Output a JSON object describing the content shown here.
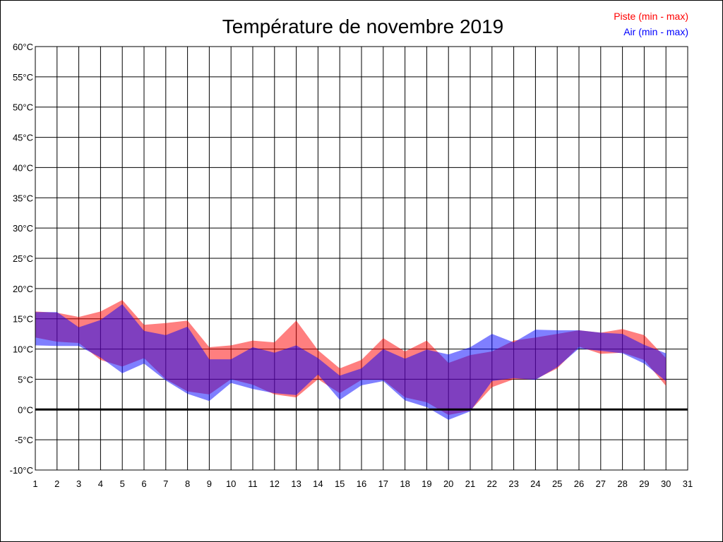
{
  "chart_data": {
    "type": "area",
    "title": "Température de novembre 2019",
    "x": [
      1,
      2,
      3,
      4,
      5,
      6,
      7,
      8,
      9,
      10,
      11,
      12,
      13,
      14,
      15,
      16,
      17,
      18,
      19,
      20,
      21,
      22,
      23,
      24,
      25,
      26,
      27,
      28,
      29,
      30
    ],
    "xlim": [
      1,
      31
    ],
    "x_ticks": [
      "1",
      "2",
      "3",
      "4",
      "5",
      "6",
      "7",
      "8",
      "9",
      "10",
      "11",
      "12",
      "13",
      "14",
      "15",
      "16",
      "17",
      "18",
      "19",
      "20",
      "21",
      "22",
      "23",
      "24",
      "25",
      "26",
      "27",
      "28",
      "29",
      "30",
      "31"
    ],
    "ylim": [
      -10,
      60
    ],
    "y_ticks": [
      "-10°C",
      "-5°C",
      "0°C",
      "5°C",
      "10°C",
      "15°C",
      "20°C",
      "25°C",
      "30°C",
      "35°C",
      "40°C",
      "45°C",
      "50°C",
      "55°C",
      "60°C"
    ],
    "grid": true,
    "legend_placement": "top-right",
    "series": [
      {
        "name": "Piste (min - max)",
        "color": "#ff0000",
        "min": [
          11.9,
          11.2,
          11.0,
          8.2,
          7.1,
          8.5,
          5.0,
          3.0,
          2.5,
          5.0,
          4.1,
          2.5,
          2.0,
          5.0,
          2.7,
          4.9,
          4.9,
          2.0,
          1.2,
          -0.9,
          -0.2,
          3.7,
          5.0,
          5.0,
          6.8,
          10.4,
          9.2,
          9.4,
          8.2,
          3.9
        ],
        "max": [
          16.2,
          16.0,
          15.3,
          16.2,
          18.1,
          14.0,
          14.3,
          14.7,
          10.3,
          10.6,
          11.4,
          11.1,
          14.7,
          9.8,
          6.8,
          8.2,
          11.8,
          9.6,
          11.4,
          7.7,
          9.0,
          9.6,
          11.4,
          11.9,
          12.5,
          13.1,
          12.7,
          13.3,
          12.3,
          8.5
        ]
      },
      {
        "name": "Air (min - max)",
        "color": "#0000ff",
        "min": [
          10.6,
          10.5,
          10.5,
          8.6,
          6.0,
          7.6,
          4.8,
          2.6,
          1.4,
          4.4,
          3.4,
          2.7,
          2.4,
          5.8,
          1.6,
          4.0,
          4.7,
          1.5,
          0.4,
          -1.7,
          -0.3,
          4.7,
          5.2,
          4.9,
          7.0,
          10.1,
          9.7,
          9.3,
          7.6,
          4.7
        ],
        "max": [
          16.1,
          16.1,
          13.6,
          14.8,
          17.4,
          13.0,
          12.3,
          13.7,
          8.3,
          8.3,
          10.3,
          9.4,
          10.6,
          8.5,
          5.6,
          6.8,
          10.0,
          8.4,
          9.9,
          9.1,
          10.3,
          12.5,
          11.1,
          13.2,
          13.1,
          13.1,
          12.7,
          12.5,
          10.7,
          9.3
        ]
      }
    ]
  }
}
